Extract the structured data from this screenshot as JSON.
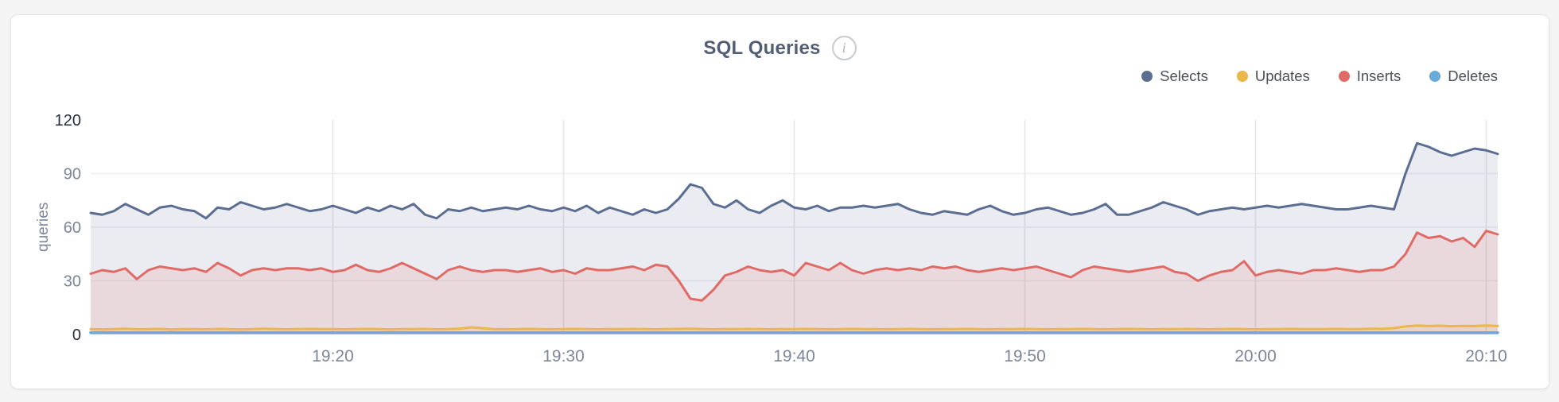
{
  "page": {
    "background": "#f4f4f5"
  },
  "panel": {
    "background": "#ffffff",
    "border_color": "#e3e4e6"
  },
  "header": {
    "title": "SQL Queries",
    "info_icon_glyph": "i"
  },
  "chart_data": {
    "type": "area",
    "title": "SQL Queries",
    "xlabel": "",
    "ylabel": "queries",
    "ylim": [
      0,
      120
    ],
    "y_ticks": [
      0,
      30,
      60,
      90,
      120
    ],
    "y_ticks_emphasized": [
      0,
      120
    ],
    "y_gridline_values": [
      30,
      60,
      90
    ],
    "grid": true,
    "x_tick_labels": [
      "19:20",
      "19:30",
      "19:40",
      "19:50",
      "20:00",
      "20:10"
    ],
    "x_tick_indices": [
      21,
      41,
      61,
      81,
      101,
      121
    ],
    "legend": {
      "position": "top-right",
      "labels": [
        "Selects",
        "Updates",
        "Inserts",
        "Deletes"
      ]
    },
    "series": [
      {
        "name": "Selects",
        "color": "#5b6d90",
        "fill_opacity": 0.13,
        "values": [
          68,
          67,
          69,
          73,
          70,
          67,
          71,
          72,
          70,
          69,
          65,
          71,
          70,
          74,
          72,
          70,
          71,
          73,
          71,
          69,
          70,
          72,
          70,
          68,
          71,
          69,
          72,
          70,
          73,
          67,
          65,
          70,
          69,
          71,
          69,
          70,
          71,
          70,
          72,
          70,
          69,
          71,
          69,
          72,
          68,
          71,
          69,
          67,
          70,
          68,
          70,
          76,
          84,
          82,
          73,
          71,
          75,
          70,
          68,
          72,
          75,
          71,
          70,
          72,
          69,
          71,
          71,
          72,
          71,
          72,
          73,
          70,
          68,
          67,
          69,
          68,
          67,
          70,
          72,
          69,
          67,
          68,
          70,
          71,
          69,
          67,
          68,
          70,
          73,
          67,
          67,
          69,
          71,
          74,
          72,
          70,
          67,
          69,
          70,
          71,
          70,
          71,
          72,
          71,
          72,
          73,
          72,
          71,
          70,
          70,
          71,
          72,
          71,
          70,
          90,
          107,
          105,
          102,
          100,
          102,
          104,
          103,
          101
        ]
      },
      {
        "name": "Updates",
        "color": "#eab748",
        "fill_opacity": 0.15,
        "values": [
          3,
          2.8,
          3,
          3.2,
          2.9,
          3,
          3.1,
          2.8,
          3,
          3,
          2.9,
          3.1,
          3,
          2.8,
          3,
          3.2,
          3,
          2.9,
          3,
          3.1,
          3,
          3,
          2.9,
          3,
          3.1,
          3,
          2.8,
          3,
          3,
          3.1,
          2.9,
          3,
          3.3,
          4,
          3.5,
          3,
          2.9,
          3,
          3.1,
          3,
          2.9,
          3,
          3.1,
          3,
          2.9,
          3,
          3,
          3.1,
          3,
          2.9,
          3,
          3.1,
          3.2,
          3,
          2.9,
          3,
          3,
          3.1,
          3,
          2.9,
          3,
          3,
          3.1,
          3,
          2.9,
          3,
          3.1,
          3,
          3,
          2.9,
          3,
          3.1,
          3,
          2.9,
          3,
          3,
          3.1,
          3,
          2.9,
          3,
          3,
          3.1,
          3,
          2.9,
          3,
          3,
          3.1,
          3,
          2.9,
          3,
          3.1,
          3,
          2.9,
          3,
          3,
          3.1,
          3,
          2.9,
          3,
          3.1,
          3,
          2.9,
          3,
          3,
          3.1,
          3,
          3,
          3,
          3.1,
          3,
          3,
          3.2,
          3.1,
          3.6,
          4.5,
          5,
          4.7,
          4.9,
          4.6,
          4.8,
          4.7,
          5,
          4.8
        ]
      },
      {
        "name": "Inserts",
        "color": "#e06b66",
        "fill_opacity": 0.14,
        "values": [
          34,
          36,
          35,
          37,
          31,
          36,
          38,
          37,
          36,
          37,
          35,
          40,
          37,
          33,
          36,
          37,
          36,
          37,
          37,
          36,
          37,
          35,
          36,
          39,
          36,
          35,
          37,
          40,
          37,
          34,
          31,
          36,
          38,
          36,
          35,
          36,
          36,
          35,
          36,
          37,
          35,
          36,
          34,
          37,
          36,
          36,
          37,
          38,
          36,
          39,
          38,
          30,
          20,
          19,
          25,
          33,
          35,
          38,
          36,
          35,
          36,
          33,
          40,
          38,
          36,
          40,
          36,
          34,
          36,
          37,
          36,
          37,
          36,
          38,
          37,
          38,
          36,
          35,
          36,
          37,
          36,
          37,
          38,
          36,
          34,
          32,
          36,
          38,
          37,
          36,
          35,
          36,
          37,
          38,
          35,
          34,
          30,
          33,
          35,
          36,
          41,
          33,
          35,
          36,
          35,
          34,
          36,
          36,
          37,
          36,
          35,
          36,
          36,
          38,
          45,
          57,
          54,
          55,
          52,
          54,
          49,
          58,
          56
        ]
      },
      {
        "name": "Deletes",
        "color": "#69aad8",
        "fill_opacity": 0,
        "values": [
          1,
          1,
          1,
          1,
          1,
          1,
          1,
          1,
          1,
          1,
          1,
          1,
          1,
          1,
          1,
          1,
          1,
          1,
          1,
          1,
          1,
          1,
          1,
          1,
          1,
          1,
          1,
          1,
          1,
          1,
          1,
          1,
          1,
          1,
          1,
          1,
          1,
          1,
          1,
          1,
          1,
          1,
          1,
          1,
          1,
          1,
          1,
          1,
          1,
          1,
          1,
          1,
          1,
          1,
          1,
          1,
          1,
          1,
          1,
          1,
          1,
          1,
          1,
          1,
          1,
          1,
          1,
          1,
          1,
          1,
          1,
          1,
          1,
          1,
          1,
          1,
          1,
          1,
          1,
          1,
          1,
          1,
          1,
          1,
          1,
          1,
          1,
          1,
          1,
          1,
          1,
          1,
          1,
          1,
          1,
          1,
          1,
          1,
          1,
          1,
          1,
          1,
          1,
          1,
          1,
          1,
          1,
          1,
          1,
          1,
          1,
          1,
          1,
          1,
          1,
          1,
          1,
          1,
          1,
          1,
          1,
          1,
          1
        ]
      }
    ]
  }
}
